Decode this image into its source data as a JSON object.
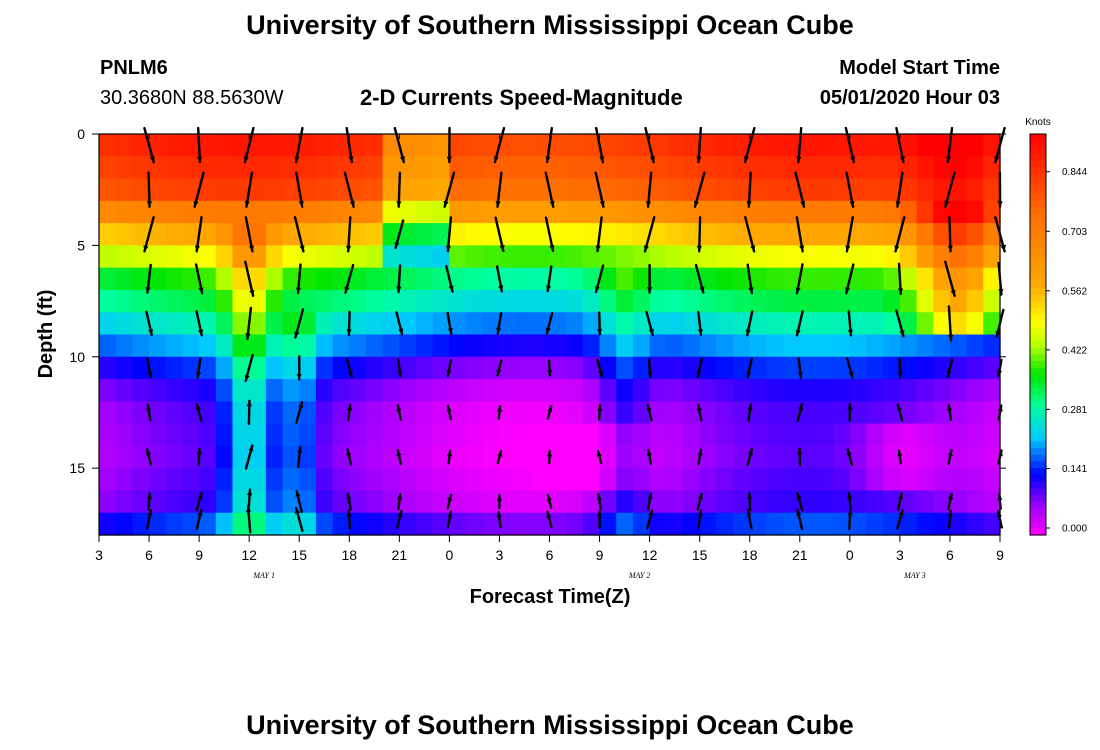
{
  "page": {
    "title_top": "University of Southern Mississippi Ocean Cube",
    "title_bottom": "University of Southern Mississippi Ocean Cube",
    "station_id": "PNLM6",
    "station_coords": "30.3680N 88.5630W",
    "model_start_label": "Model Start Time",
    "model_start_value": "05/01/2020 Hour 03"
  },
  "chart_data": {
    "type": "heatmap",
    "title": "2-D Currents Speed-Magnitude",
    "xlabel": "Forecast Time(Z)",
    "ylabel": "Depth (ft)",
    "x_tick_labels": [
      "3",
      "6",
      "9",
      "12",
      "15",
      "18",
      "21",
      "0",
      "3",
      "6",
      "9",
      "12",
      "15",
      "18",
      "21",
      "0",
      "3",
      "6",
      "9"
    ],
    "y_tick_labels": [
      "0",
      "5",
      "10",
      "15"
    ],
    "ylim": [
      0,
      18
    ],
    "day_labels": [
      {
        "text": "MAY 1",
        "x_index": 3.3
      },
      {
        "text": "MAY 2",
        "x_index": 10.8
      },
      {
        "text": "MAY 3",
        "x_index": 16.3
      }
    ],
    "colorbar": {
      "label": "Knots",
      "ticks": [
        "0.000",
        "0.141",
        "0.281",
        "0.422",
        "0.562",
        "0.703",
        "0.844"
      ],
      "tick_values": [
        0.0,
        0.141,
        0.281,
        0.422,
        0.562,
        0.703,
        0.844
      ],
      "range": [
        0,
        0.95
      ]
    },
    "depth_levels_ft": [
      0.5,
      1.5,
      2.5,
      3.5,
      4.5,
      5.5,
      6.5,
      7.5,
      8.5,
      9.5,
      10.5,
      11.5,
      12.5,
      13.5,
      14.5,
      15.5,
      16.5,
      17.5
    ],
    "speed_profiles": [
      [
        0.0,
        0.88
      ],
      [
        2.5,
        0.8
      ],
      [
        4.5,
        0.55
      ],
      [
        5.5,
        0.45
      ],
      [
        6.5,
        0.35
      ],
      [
        7.5,
        0.3
      ],
      [
        8.5,
        0.24
      ],
      [
        9.5,
        0.18
      ],
      [
        10.5,
        0.12
      ],
      [
        11.5,
        0.08
      ],
      [
        12.5,
        0.06
      ],
      [
        14.5,
        0.05
      ],
      [
        16.5,
        0.07
      ],
      [
        17.5,
        0.13
      ],
      [
        18.0,
        0.16
      ]
    ],
    "vectors_sample": [
      {
        "time_index": 1,
        "depth_ft": 0.8,
        "speed": 0.85,
        "direction": "south"
      },
      {
        "time_index": 9,
        "depth_ft": 8.2,
        "speed": 0.22,
        "direction": "south"
      },
      {
        "time_index": 13,
        "depth_ft": 13.0,
        "speed": 0.07,
        "direction": "north"
      }
    ]
  }
}
